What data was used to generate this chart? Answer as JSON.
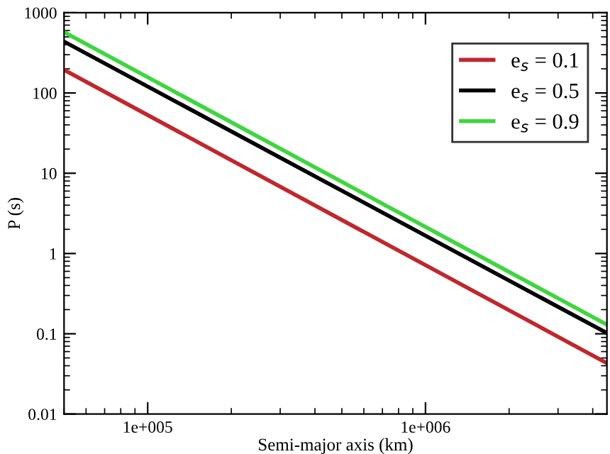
{
  "chart_data": {
    "type": "line",
    "xlabel": "Semi-major axis (km)",
    "ylabel": "P (s)",
    "x": [
      50000,
      4500000
    ],
    "series": [
      {
        "name": "e$_{s}$ = 0.1",
        "color": "#c0272d",
        "values": [
          194,
          0.043
        ]
      },
      {
        "name": "e$_{s}$ = 0.5",
        "color": "#000000",
        "values": [
          437,
          0.102
        ]
      },
      {
        "name": "e$_{s}$ = 0.9",
        "color": "#3ed63e",
        "values": [
          573,
          0.13
        ]
      }
    ],
    "log": "xy",
    "xlim": [
      50000,
      4500000
    ],
    "ylim": [
      0.01,
      1000
    ],
    "xticks": [
      {
        "value": 100000,
        "label": "1e+005"
      },
      {
        "value": 1000000,
        "label": "1e+006"
      }
    ],
    "yticks": [
      0.01,
      0.1,
      1,
      10,
      100,
      1000
    ],
    "grid": false,
    "legend": "top right",
    "marker": "none",
    "line_style": "solid"
  }
}
